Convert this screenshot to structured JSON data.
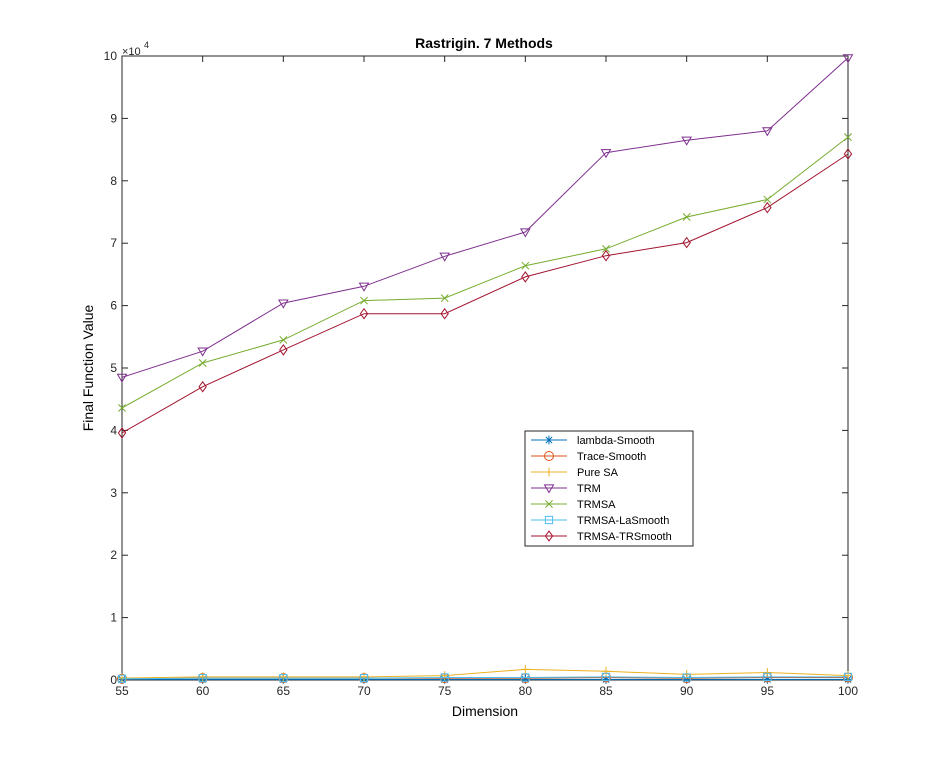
{
  "chart_data": {
    "type": "line",
    "title": "Rastrigin. 7 Methods",
    "xlabel": "Dimension",
    "ylabel": "Final Function Value",
    "y_exponent_label": "× 10^4",
    "y_exponent_base": "×10",
    "y_exponent_power": "4",
    "x": [
      55,
      60,
      65,
      70,
      75,
      80,
      85,
      90,
      95,
      100
    ],
    "xlim": [
      55,
      100
    ],
    "ylim": [
      0,
      10
    ],
    "x_ticks": [
      "55",
      "60",
      "65",
      "70",
      "75",
      "80",
      "85",
      "90",
      "95",
      "100"
    ],
    "y_ticks": [
      "0",
      "1",
      "2",
      "3",
      "4",
      "5",
      "6",
      "7",
      "8",
      "9",
      "10"
    ],
    "grid": false,
    "legend_position": "center-right",
    "series": [
      {
        "name": "lambda-Smooth",
        "color": "#0072BD",
        "marker": "asterisk",
        "values": [
          0.01,
          0.01,
          0.01,
          0.01,
          0.01,
          0.01,
          0.01,
          0.01,
          0.01,
          0.01
        ]
      },
      {
        "name": "Trace-Smooth",
        "color": "#D95319",
        "marker": "circle",
        "values": [
          0.02,
          0.03,
          0.03,
          0.03,
          0.03,
          0.03,
          0.04,
          0.03,
          0.04,
          0.04
        ]
      },
      {
        "name": "Pure SA",
        "color": "#EDB120",
        "marker": "plus",
        "values": [
          0.03,
          0.05,
          0.05,
          0.05,
          0.07,
          0.17,
          0.14,
          0.09,
          0.12,
          0.07
        ]
      },
      {
        "name": "TRM",
        "color": "#7E2F8E",
        "marker": "triangle-down",
        "values": [
          4.85,
          5.27,
          6.04,
          6.31,
          6.79,
          7.18,
          8.45,
          8.65,
          8.8,
          9.97
        ]
      },
      {
        "name": "TRMSA",
        "color": "#77AC30",
        "marker": "x",
        "values": [
          4.36,
          5.08,
          5.45,
          6.08,
          6.12,
          6.64,
          6.91,
          7.42,
          7.7,
          8.7
        ]
      },
      {
        "name": "TRMSA-LaSmooth",
        "color": "#4DBEEE",
        "marker": "square",
        "values": [
          0.02,
          0.03,
          0.03,
          0.03,
          0.04,
          0.04,
          0.05,
          0.04,
          0.05,
          0.05
        ]
      },
      {
        "name": "TRMSA-TRSmooth",
        "color": "#A2142F",
        "marker": "diamond",
        "values": [
          3.96,
          4.7,
          5.29,
          5.87,
          5.87,
          6.46,
          6.8,
          7.01,
          7.57,
          8.43
        ]
      }
    ]
  }
}
